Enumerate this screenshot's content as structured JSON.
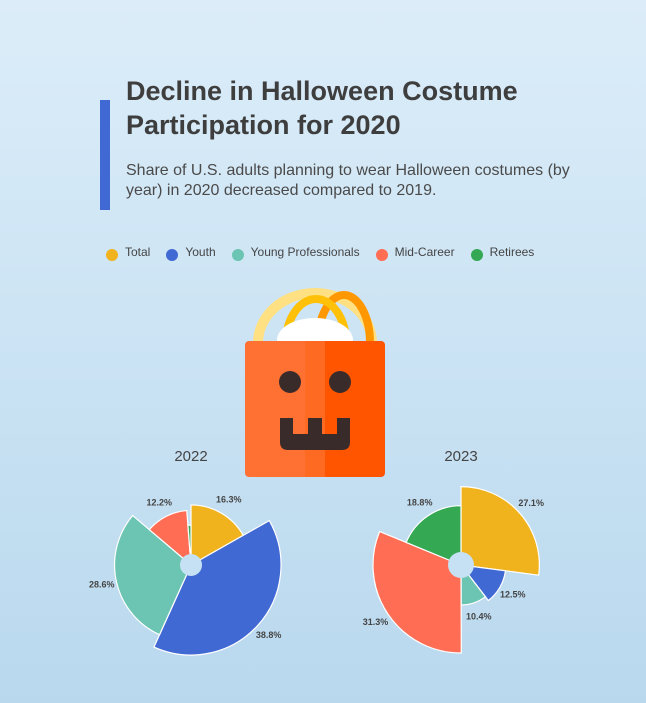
{
  "header": {
    "title": "Decline in Halloween Costume Participation for 2020",
    "subtitle": "Share of U.S. adults planning to wear Halloween costumes (by year) in 2020 decreased compared to 2019."
  },
  "colors": {
    "accent": "#4169d4",
    "Total": "#f0b21d",
    "Youth": "#4169d4",
    "Young Professionals": "#6cc5b3",
    "Mid-Career": "#ff6d55",
    "Retirees": "#34a853"
  },
  "illustration": {
    "icon": "halloween-pumpkin-bag-icon"
  },
  "chart_data": [
    {
      "type": "pie",
      "variant": "nightingale-rose",
      "title": "2022",
      "legend_position": "top-left",
      "categories": [
        "Total",
        "Youth",
        "Young Professionals",
        "Mid-Career",
        "Retirees"
      ],
      "values": [
        16.3,
        38.8,
        28.6,
        12.2,
        1.2
      ],
      "labels": [
        "16.3%",
        "38.8%",
        "28.6%",
        "12.2%",
        ""
      ]
    },
    {
      "type": "pie",
      "variant": "nightingale-rose",
      "title": "2023",
      "legend_position": "top-left",
      "categories": [
        "Total",
        "Youth",
        "Young Professionals",
        "Mid-Career",
        "Retirees"
      ],
      "values": [
        27.1,
        12.5,
        10.4,
        31.3,
        18.8
      ],
      "labels": [
        "27.1%",
        "12.5%",
        "10.4%",
        "31.3%",
        "18.8%"
      ]
    }
  ]
}
